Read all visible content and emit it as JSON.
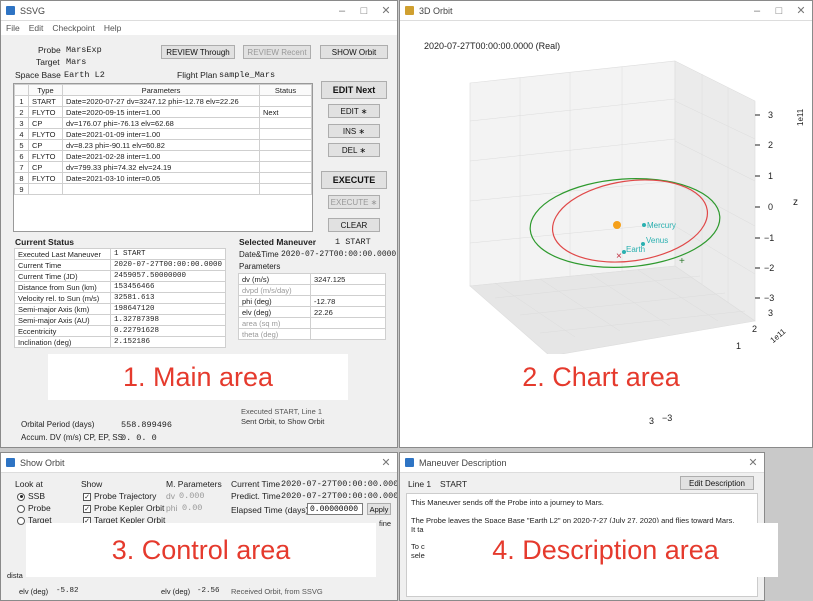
{
  "main": {
    "title": "SSVG",
    "menu": [
      "File",
      "Edit",
      "Checkpoint",
      "Help"
    ],
    "probe_label": "Probe",
    "probe_value": "MarsExp",
    "target_label": "Target",
    "target_value": "Mars",
    "space_base_label": "Space Base",
    "space_base_value": "Earth L2",
    "flight_plan_label": "Flight Plan",
    "flight_plan_value": "sample_Mars",
    "review_through": "REVIEW Through",
    "review_recent": "REVIEW Recent",
    "show_orbit": "SHOW Orbit",
    "table_headers": [
      "",
      "Type",
      "Parameters",
      "Status"
    ],
    "rows": [
      {
        "n": "1",
        "type": "START",
        "params": "Date=2020-07-27 dv=3247.12 phi=-12.78 elv=22.26",
        "status": ""
      },
      {
        "n": "2",
        "type": "FLYTO",
        "params": "Date=2020-09-15 inter=1.00",
        "status": "Next"
      },
      {
        "n": "3",
        "type": "CP",
        "params": "dv=176.07 phi=-76.13 elv=62.68",
        "status": ""
      },
      {
        "n": "4",
        "type": "FLYTO",
        "params": "Date=2021-01-09 inter=1.00",
        "status": ""
      },
      {
        "n": "5",
        "type": "CP",
        "params": "dv=8.23 phi=-90.11 elv=60.82",
        "status": ""
      },
      {
        "n": "6",
        "type": "FLYTO",
        "params": "Date=2021-02-28 inter=1.00",
        "status": ""
      },
      {
        "n": "7",
        "type": "CP",
        "params": "dv=799.33 phi=74.32 elv=24.19",
        "status": ""
      },
      {
        "n": "8",
        "type": "FLYTO",
        "params": "Date=2021-03-10 inter=0.05",
        "status": ""
      },
      {
        "n": "9",
        "type": "",
        "params": "",
        "status": ""
      }
    ],
    "edit_next": "EDIT Next",
    "edit": "EDIT ∗",
    "ins": "INS ∗",
    "del": "DEL ∗",
    "execute": "EXECUTE",
    "execute_star": "EXECUTE ∗",
    "clear": "CLEAR",
    "current_status_title": "Current Status",
    "status_rows": [
      {
        "label": "Executed Last Maneuver",
        "value": "1  START"
      },
      {
        "label": "Current Time",
        "value": "2020-07-27T00:00:00.0000"
      },
      {
        "label": "Current Time (JD)",
        "value": "2459057.50000000"
      },
      {
        "label": "Distance from Sun (km)",
        "value": "153456466"
      },
      {
        "label": "Velocity rel. to Sun (m/s)",
        "value": "32581.613"
      },
      {
        "label": "Semi-major Axis (km)",
        "value": "198647120"
      },
      {
        "label": "Semi-major Axis (AU)",
        "value": "1.32787398"
      },
      {
        "label": "Eccentricity",
        "value": "0.22791628"
      },
      {
        "label": "Inclination (deg)",
        "value": "2.152186"
      }
    ],
    "orbital_period_label": "Orbital Period (days)",
    "orbital_period_value": "558.899496",
    "accum_label": "Accum. DV (m/s) CP, EP, SS",
    "accum_value": "0.  0.  0",
    "selected_title": "Selected Maneuver",
    "selected_value": "1  START",
    "datetime_label": "Date&Time",
    "datetime_value": "2020-07-27T00:00:00.0000",
    "params_header": "Parameters",
    "params_rows": [
      {
        "label": "dv (m/s)",
        "value": "3247.125"
      },
      {
        "label": "dvpd (m/s/day)",
        "value": ""
      },
      {
        "label": "phi (deg)",
        "value": "-12.78"
      },
      {
        "label": "elv (deg)",
        "value": "22.26"
      },
      {
        "label": "area (sq m)",
        "value": ""
      },
      {
        "label": "theta (deg)",
        "value": ""
      }
    ],
    "msg_line1": "Executed START, Line 1",
    "msg_line2": "Sent Orbit, to Show Orbit"
  },
  "chart": {
    "title": "3D Orbit",
    "time_label": "2020-07-27T00:00:00.0000 (Real)",
    "z_ticks": [
      "3",
      "2",
      "1",
      "0",
      "−1",
      "−2",
      "−3"
    ],
    "z_label": "z",
    "exp_label": "1e11",
    "y_ticks": [
      "3",
      "2",
      "1"
    ],
    "y_exp": "1e11",
    "bottom_ticks": [
      "3",
      "−3"
    ],
    "planets": [
      "Mercury",
      "Venus",
      "Earth"
    ],
    "colors": {
      "earth_orbit": "#2e9a2e",
      "probe_orbit": "#e04848",
      "sun": "#f5a01a",
      "planet": "#2ab0b0"
    }
  },
  "control": {
    "title": "Show Orbit",
    "look_at_label": "Look at",
    "look_options": [
      "SSB",
      "Probe",
      "Target"
    ],
    "show_label": "Show",
    "show_options": [
      "Probe Trajectory",
      "Probe Kepler Orbit",
      "Target Kepler Orbit"
    ],
    "m_params_label": "M. Parameters",
    "m_params": [
      {
        "label": "dv",
        "value": "0.000"
      },
      {
        "label": "phi",
        "value": "0.00"
      }
    ],
    "current_time_label": "Current Time",
    "current_time_value": "2020-07-27T00:00:00.0000",
    "predict_time_label": "Predict. Time",
    "predict_time_value": "2020-07-27T00:00:00.0000",
    "elapsed_label": "Elapsed Time (days)",
    "elapsed_value": "0.00000000",
    "apply": "Apply",
    "fine_label": "fine",
    "dist_label": "dista",
    "elv1_label": "elv (deg)",
    "elv1_value": "-5.82",
    "elv2_label": "elv (deg)",
    "elv2_value": "-2.56",
    "received_msg": "Received Orbit, from SSVG"
  },
  "description": {
    "title": "Maneuver Description",
    "line_label": "Line 1",
    "line_type": "START",
    "edit_button": "Edit Description",
    "para1": "This Maneuver sends off the Probe into a journey to Mars.",
    "para2a": "The Probe leaves the Space Base \"Earth L2\" on 2020-7-27 (July 27, 2020) and flies toward Mars.",
    "para2b": "It ta",
    "para3a": "To c",
    "para3b": "sele"
  },
  "overlays": {
    "main": "1. Main area",
    "chart": "2. Chart area",
    "control": "3. Control area",
    "description": "4. Description area"
  }
}
